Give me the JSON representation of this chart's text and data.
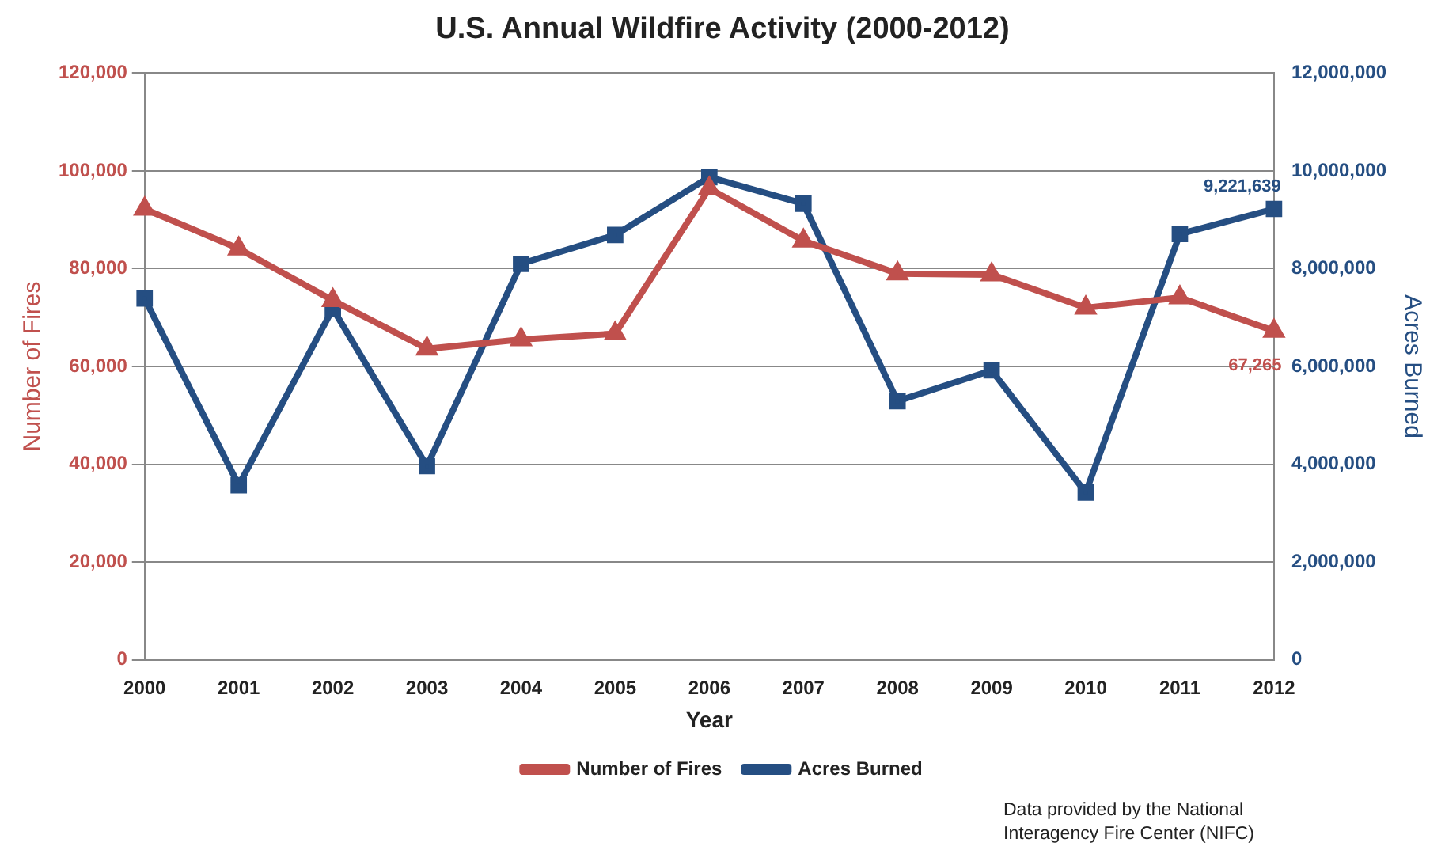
{
  "chart_data": {
    "type": "line",
    "title": "U.S. Annual Wildfire Activity (2000-2012)",
    "xlabel": "Year",
    "ylabel": "Number of Fires",
    "y2label": "Acres Burned",
    "categories": [
      "2000",
      "2001",
      "2002",
      "2003",
      "2004",
      "2005",
      "2006",
      "2007",
      "2008",
      "2009",
      "2010",
      "2011",
      "2012"
    ],
    "series": [
      {
        "name": "Number of Fires",
        "color": "#c0504d",
        "marker": "triangle",
        "values": [
          92200,
          84100,
          73500,
          63600,
          65500,
          66700,
          96400,
          85700,
          79000,
          78800,
          72000,
          74100,
          67265
        ],
        "value_labels": [
          null,
          null,
          null,
          null,
          null,
          null,
          null,
          null,
          null,
          null,
          null,
          null,
          "67,265"
        ]
      },
      {
        "name": "Acres Burned",
        "color": "#254e82",
        "marker": "square",
        "axis": "y2",
        "values": [
          7390000,
          3570000,
          7180000,
          3960000,
          8100000,
          8690000,
          9870000,
          9330000,
          5290000,
          5920000,
          3420000,
          8710000,
          9221639
        ],
        "value_labels": [
          null,
          null,
          null,
          null,
          null,
          null,
          null,
          null,
          null,
          null,
          null,
          null,
          "9,221,639"
        ]
      }
    ],
    "ylim": [
      0,
      120000
    ],
    "yticks": [
      {
        "value": 0,
        "label": "0"
      },
      {
        "value": 20000,
        "label": "20,000"
      },
      {
        "value": 40000,
        "label": "40,000"
      },
      {
        "value": 60000,
        "label": "60,000"
      },
      {
        "value": 80000,
        "label": "80,000"
      },
      {
        "value": 100000,
        "label": "100,000"
      },
      {
        "value": 120000,
        "label": "120,000"
      }
    ],
    "y2lim": [
      0,
      12000000
    ],
    "y2ticks": [
      {
        "value": 0,
        "label": "0"
      },
      {
        "value": 2000000,
        "label": "2,000,000"
      },
      {
        "value": 4000000,
        "label": "4,000,000"
      },
      {
        "value": 6000000,
        "label": "6,000,000"
      },
      {
        "value": 8000000,
        "label": "8,000,000"
      },
      {
        "value": 10000000,
        "label": "10,000,000"
      },
      {
        "value": 12000000,
        "label": "12,000,000"
      }
    ],
    "grid": "y",
    "legend": "bottom",
    "line_style": "solid",
    "annotations": [
      "Data provided by the National\nInteragency Fire Center (NIFC)"
    ]
  }
}
